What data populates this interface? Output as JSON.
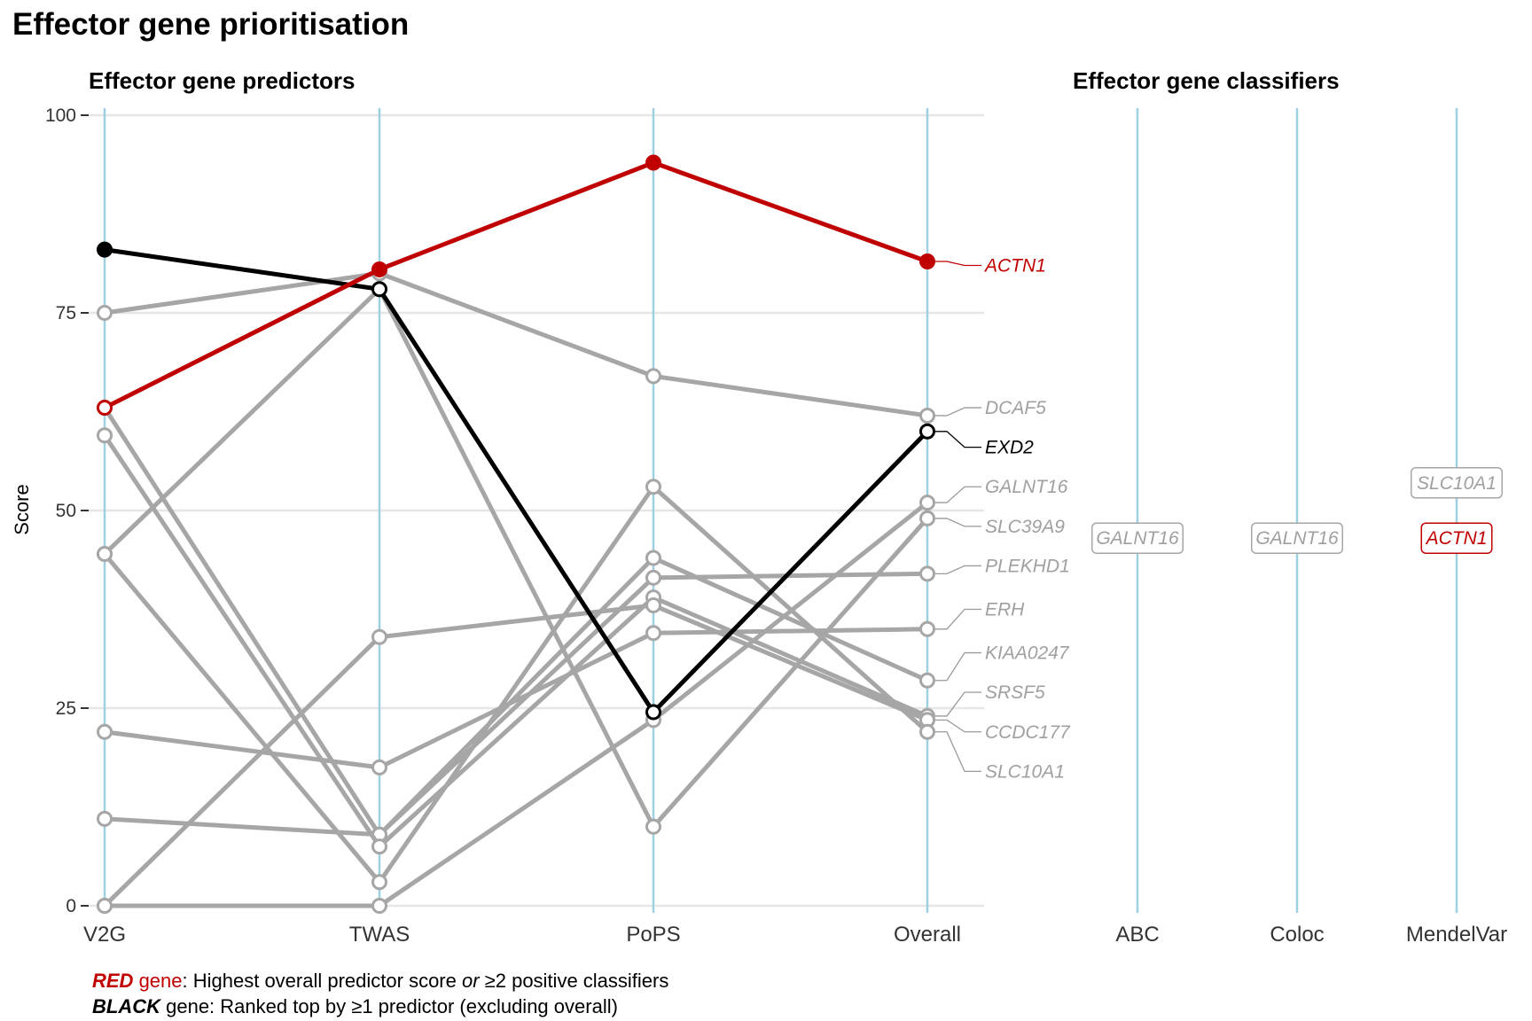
{
  "title": "Effector gene prioritisation",
  "footer": {
    "line1_word": "RED",
    "line1_gene": " gene",
    "line1_text_a": ": Highest overall predictor score ",
    "line1_or": "or",
    "line1_text_b": " ≥2 positive classifiers",
    "line2_word": "BLACK",
    "line2_text": " gene: Ranked top by ≥1 predictor (excluding overall)"
  },
  "colors": {
    "red": "#c00000",
    "black": "#000000",
    "grey": "#a6a6a6",
    "axis_line": "#9dd0e0",
    "grid": "#e6e6e6"
  },
  "chart_data": [
    {
      "type": "line",
      "title": "Effector gene predictors",
      "ylabel": "Score",
      "categories": [
        "V2G",
        "TWAS",
        "PoPS",
        "Overall"
      ],
      "ylim": [
        0,
        100
      ],
      "yticks": [
        0,
        25,
        50,
        75,
        100
      ],
      "grid": true,
      "series": [
        {
          "name": "ACTN1",
          "color": "red",
          "values": [
            63,
            80.5,
            94,
            81.5
          ],
          "filled": [
            false,
            true,
            true,
            true
          ]
        },
        {
          "name": "EXD2",
          "color": "black",
          "values": [
            83,
            78,
            24.5,
            60
          ],
          "filled": [
            true,
            false,
            false,
            false
          ]
        },
        {
          "name": "DCAF5",
          "color": "grey",
          "values": [
            75,
            80,
            67,
            62
          ]
        },
        {
          "name": "GALNT16",
          "color": "grey",
          "values": [
            0,
            0,
            23.5,
            51
          ]
        },
        {
          "name": "SLC39A9",
          "color": "grey",
          "values": [
            44.5,
            78,
            10,
            49
          ]
        },
        {
          "name": "PLEKHD1",
          "color": "grey",
          "values": [
            63,
            9,
            41.5,
            42
          ]
        },
        {
          "name": "ERH",
          "color": "grey",
          "values": [
            22,
            17.5,
            34.5,
            35
          ]
        },
        {
          "name": "KIAA0247",
          "color": "grey",
          "values": [
            11,
            9,
            44,
            28.5
          ]
        },
        {
          "name": "SRSF5",
          "color": "grey",
          "values": [
            59.5,
            7.5,
            39,
            24
          ]
        },
        {
          "name": "CCDC177",
          "color": "grey",
          "values": [
            0,
            34,
            38,
            23.5
          ]
        },
        {
          "name": "SLC10A1",
          "color": "grey",
          "values": [
            44.5,
            3,
            53,
            22
          ]
        }
      ],
      "labels": [
        {
          "gene": "ACTN1",
          "label_y": 81,
          "color": "red"
        },
        {
          "gene": "DCAF5",
          "label_y": 63,
          "color": "grey"
        },
        {
          "gene": "EXD2",
          "label_y": 58,
          "color": "black"
        },
        {
          "gene": "GALNT16",
          "label_y": 53,
          "color": "grey"
        },
        {
          "gene": "SLC39A9",
          "label_y": 48,
          "color": "grey"
        },
        {
          "gene": "PLEKHD1",
          "label_y": 43,
          "color": "grey"
        },
        {
          "gene": "ERH",
          "label_y": 37.5,
          "color": "grey"
        },
        {
          "gene": "KIAA0247",
          "label_y": 32,
          "color": "grey"
        },
        {
          "gene": "SRSF5",
          "label_y": 27,
          "color": "grey"
        },
        {
          "gene": "CCDC177",
          "label_y": 22,
          "color": "grey"
        },
        {
          "gene": "SLC10A1",
          "label_y": 17,
          "color": "grey"
        }
      ]
    },
    {
      "type": "table",
      "title": "Effector gene classifiers",
      "categories": [
        "ABC",
        "Coloc",
        "MendelVar"
      ],
      "entries": [
        {
          "category": "ABC",
          "gene": "GALNT16",
          "color": "grey",
          "y": 46.5
        },
        {
          "category": "Coloc",
          "gene": "GALNT16",
          "color": "grey",
          "y": 46.5
        },
        {
          "category": "MendelVar",
          "gene": "SLC10A1",
          "color": "grey",
          "y": 53.5
        },
        {
          "category": "MendelVar",
          "gene": "ACTN1",
          "color": "red",
          "y": 46.5
        }
      ]
    }
  ]
}
